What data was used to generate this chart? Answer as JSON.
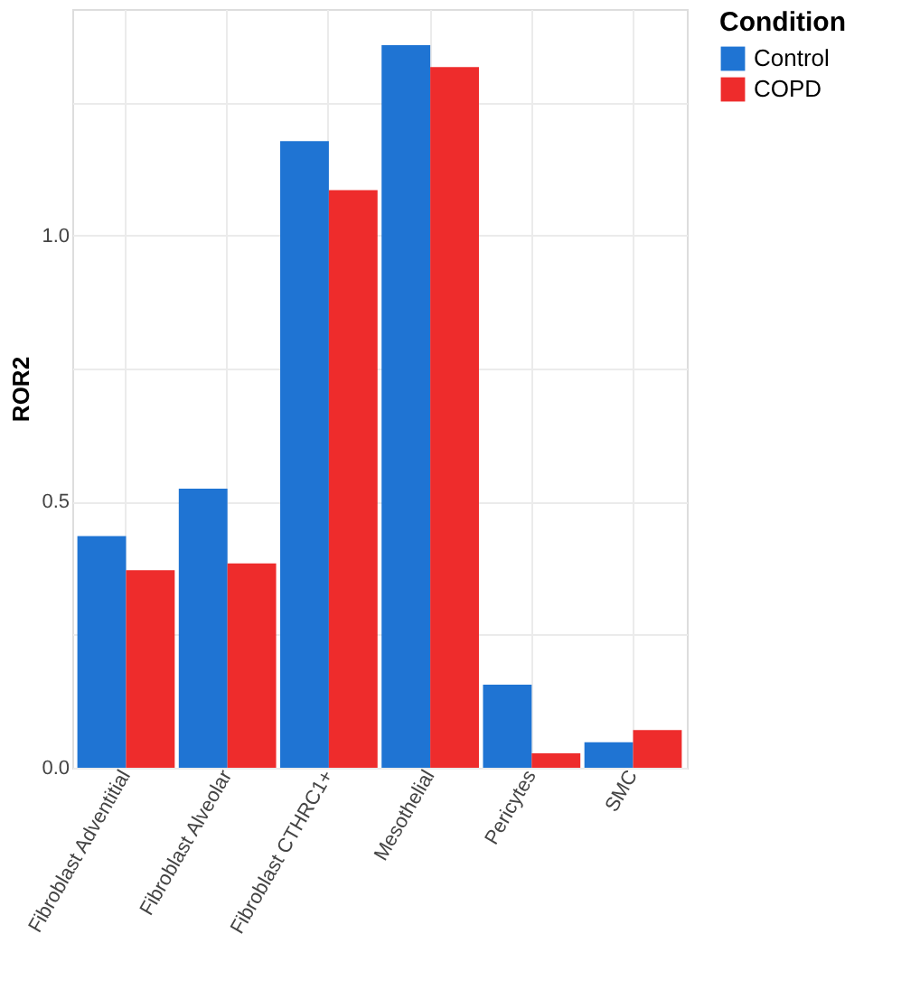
{
  "chart_data": {
    "type": "bar",
    "ylabel": "ROR2",
    "legend_title": "Condition",
    "categories": [
      "Fibroblast Adventitial",
      "Fibroblast Alveolar",
      "Fibroblast CTHRC1+",
      "Mesothelial",
      "Pericytes",
      "SMC"
    ],
    "series": [
      {
        "name": "Control",
        "color": "#1f74d3",
        "values": [
          0.435,
          0.524,
          1.177,
          1.357,
          0.156,
          0.048
        ]
      },
      {
        "name": "COPD",
        "color": "#ee2c2c",
        "values": [
          0.371,
          0.384,
          1.085,
          1.316,
          0.027,
          0.071
        ]
      }
    ],
    "ylim": [
      0,
      1.425
    ],
    "yticks": [
      {
        "value": 0,
        "label": "0.0"
      },
      {
        "value": 0.25,
        "label": null
      },
      {
        "value": 0.5,
        "label": "0.5"
      },
      {
        "value": 0.75,
        "label": null
      },
      {
        "value": 1.0,
        "label": "1.0"
      },
      {
        "value": 1.25,
        "label": null
      }
    ],
    "grid": true,
    "legend": "right"
  }
}
